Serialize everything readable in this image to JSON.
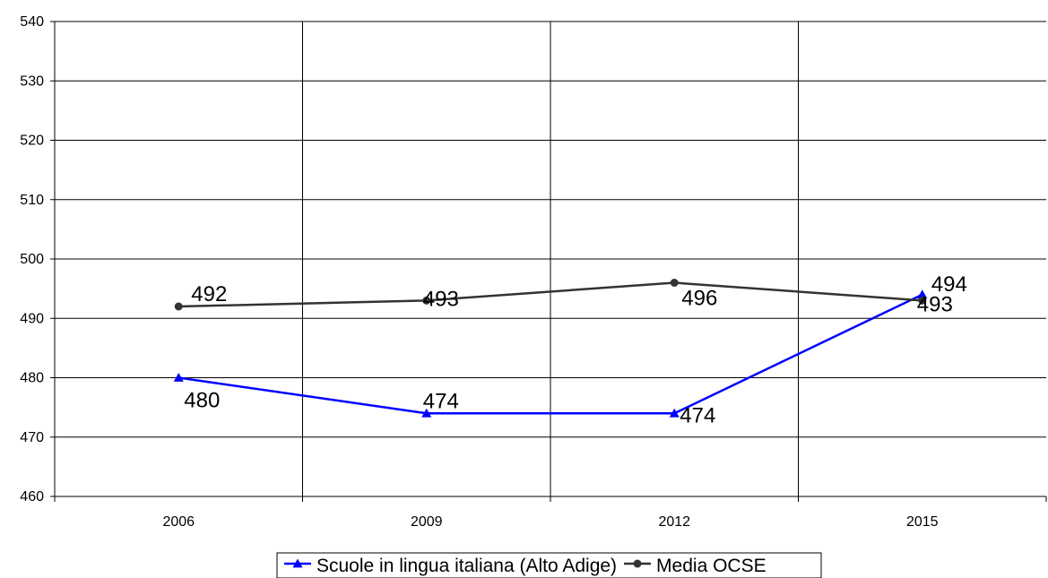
{
  "chart_data": {
    "type": "line",
    "title": "",
    "xlabel": "",
    "ylabel": "",
    "categories": [
      "2006",
      "2009",
      "2012",
      "2015"
    ],
    "ylim": [
      460,
      540
    ],
    "yticks": [
      460,
      470,
      480,
      490,
      500,
      510,
      520,
      530,
      540
    ],
    "grid": true,
    "legend_position": "bottom",
    "series": [
      {
        "name": "Scuole in lingua italiana (Alto Adige)",
        "values": [
          480,
          474,
          474,
          494
        ],
        "color": "#0000ff",
        "marker": "triangle"
      },
      {
        "name": "Media OCSE",
        "values": [
          492,
          493,
          496,
          493
        ],
        "color": "#333333",
        "marker": "circle"
      }
    ]
  }
}
